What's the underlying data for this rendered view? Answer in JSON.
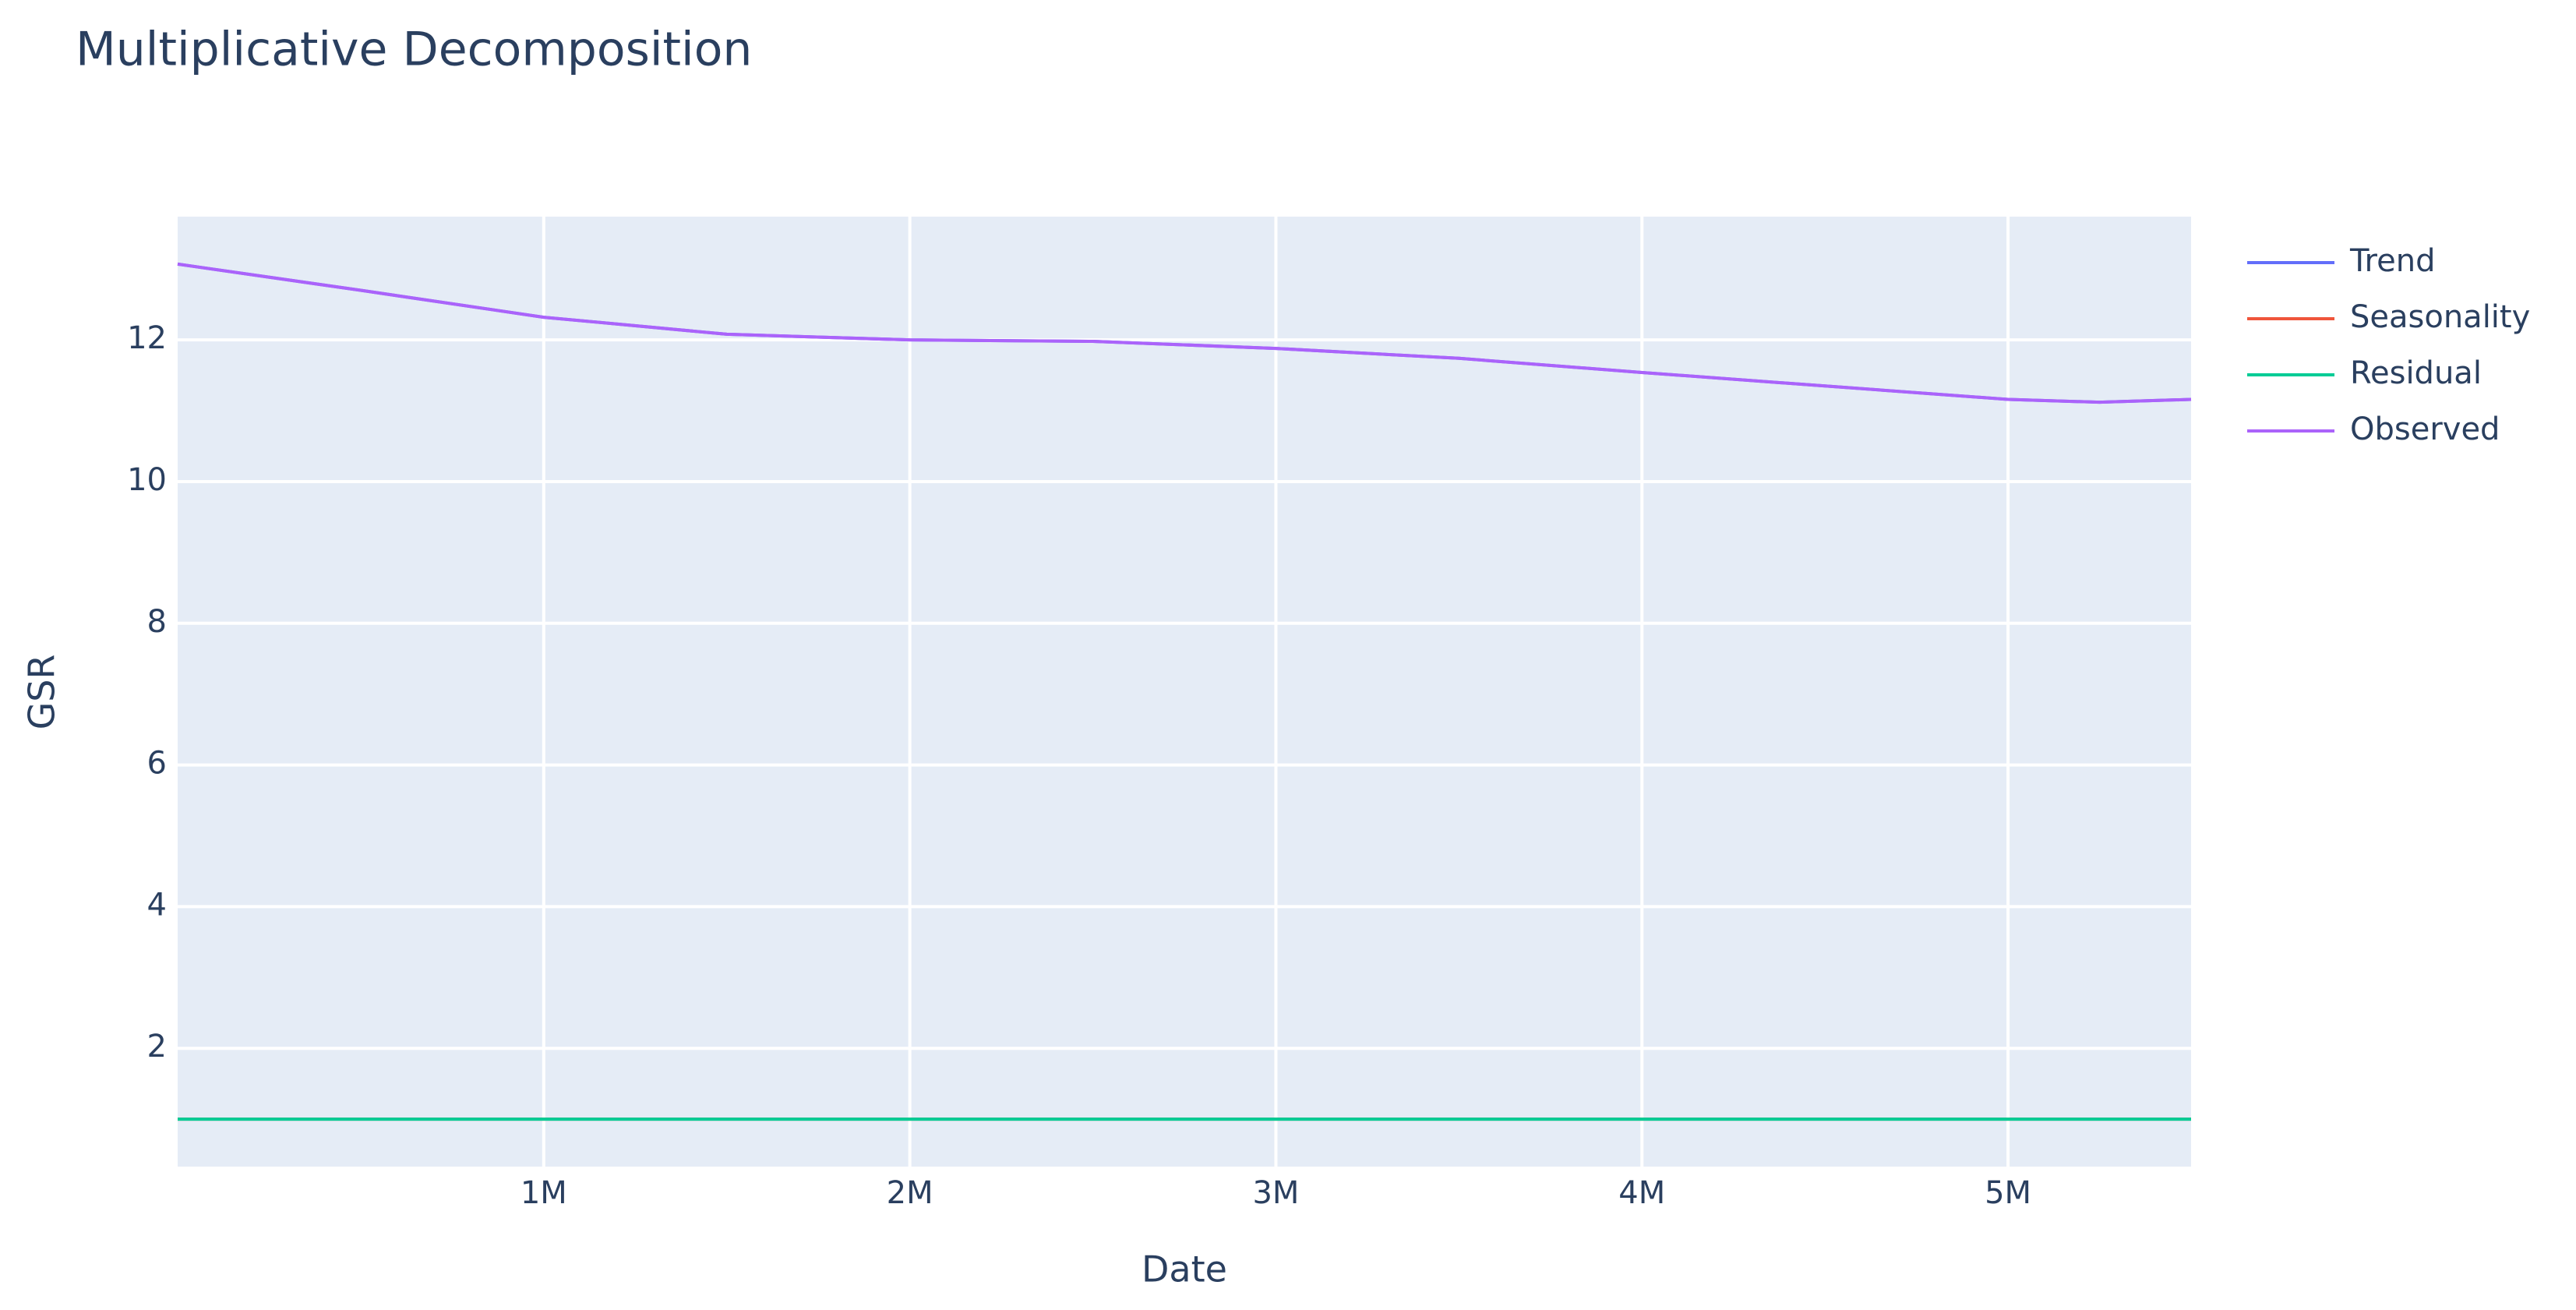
{
  "chart_data": {
    "type": "line",
    "title": "Multiplicative Decomposition",
    "x_label": "Date",
    "y_label": "GSR",
    "x": [
      0,
      500000,
      1000000,
      1500000,
      2000000,
      2500000,
      3000000,
      3500000,
      4000000,
      4500000,
      5000000,
      5250000,
      5500000
    ],
    "series": [
      {
        "name": "Trend",
        "color": "#636efa",
        "values": [
          13.07,
          12.7,
          12.32,
          12.08,
          12.0,
          11.98,
          11.88,
          11.74,
          11.54,
          11.35,
          11.16,
          11.12,
          11.16
        ]
      },
      {
        "name": "Seasonality",
        "color": "#EF553B",
        "values": [
          1,
          1,
          1,
          1,
          1,
          1,
          1,
          1,
          1,
          1,
          1,
          1,
          1
        ]
      },
      {
        "name": "Residual",
        "color": "#00cc96",
        "values": [
          1,
          1,
          1,
          1,
          1,
          1,
          1,
          1,
          1,
          1,
          1,
          1,
          1
        ]
      },
      {
        "name": "Observed",
        "color": "#ab63fa",
        "values": [
          13.07,
          12.7,
          12.32,
          12.08,
          12.0,
          11.98,
          11.88,
          11.74,
          11.54,
          11.35,
          11.16,
          11.12,
          11.16
        ]
      }
    ],
    "xlim": [
      0,
      5500000
    ],
    "xticks": [
      {
        "value": 1000000,
        "label": "1M"
      },
      {
        "value": 2000000,
        "label": "2M"
      },
      {
        "value": 3000000,
        "label": "3M"
      },
      {
        "value": 4000000,
        "label": "4M"
      },
      {
        "value": 5000000,
        "label": "5M"
      }
    ],
    "ylim": [
      0.33,
      13.74
    ],
    "yticks": [
      2,
      4,
      6,
      8,
      10,
      12
    ],
    "grid": true,
    "legend": "right"
  }
}
